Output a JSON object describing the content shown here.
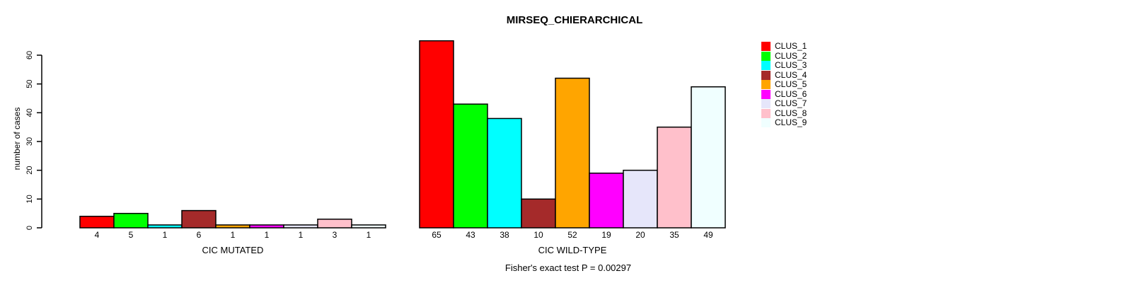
{
  "chart_data": {
    "type": "bar",
    "title": "MIRSEQ_CHIERARCHICAL",
    "ylabel": "number of cases",
    "ylim": [
      0,
      65
    ],
    "yticks": [
      "0",
      "10",
      "20",
      "30",
      "40",
      "50",
      "60"
    ],
    "grid": false,
    "legend_position": "top-right",
    "clusters": [
      {
        "label": "CLUS_1",
        "color": "#FF0000"
      },
      {
        "label": "CLUS_2",
        "color": "#00FF00"
      },
      {
        "label": "CLUS_3",
        "color": "#00FFFF"
      },
      {
        "label": "CLUS_4",
        "color": "#A52A2A"
      },
      {
        "label": "CLUS_5",
        "color": "#FFA500"
      },
      {
        "label": "CLUS_6",
        "color": "#FF00FF"
      },
      {
        "label": "CLUS_7",
        "color": "#E6E6FA"
      },
      {
        "label": "CLUS_8",
        "color": "#FFC0CB"
      },
      {
        "label": "CLUS_9",
        "color": "#F0FFFF"
      }
    ],
    "groups": [
      {
        "label": "CIC MUTATED",
        "values": [
          4,
          5,
          1,
          6,
          1,
          1,
          1,
          3,
          1
        ]
      },
      {
        "label": "CIC WILD-TYPE",
        "values": [
          65,
          43,
          38,
          10,
          52,
          19,
          20,
          35,
          49
        ]
      }
    ],
    "annotation": "Fisher's exact test P = 0.00297"
  }
}
